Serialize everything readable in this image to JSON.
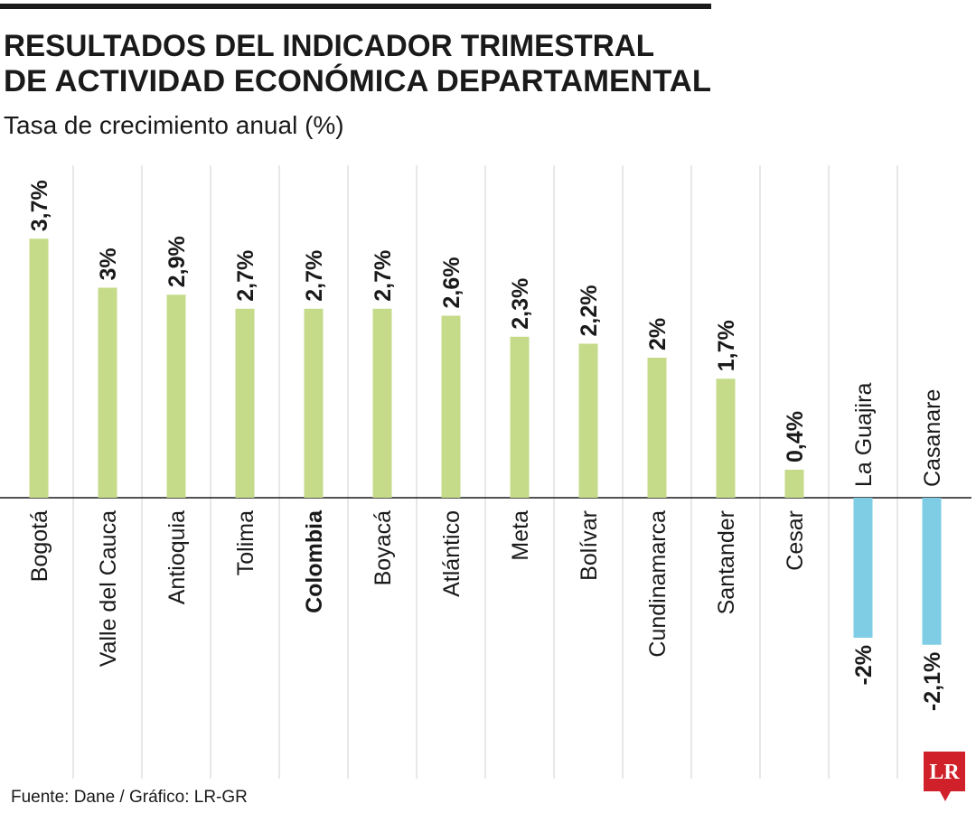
{
  "chart_data": {
    "type": "bar",
    "title": [
      "RESULTADOS DEL INDICADOR TRIMESTRAL",
      "DE ACTIVIDAD ECONÓMICA DEPARTAMENTAL"
    ],
    "subtitle": "Tasa de crecimiento anual (%)",
    "categories": [
      "Bogotá",
      "Valle del Cauca",
      "Antioquia",
      "Tolima",
      "Colombia",
      "Boyacá",
      "Atlántico",
      "Meta",
      "Bolívar",
      "Cundinamarca",
      "Santander",
      "Cesar",
      "La Guajira",
      "Casanare"
    ],
    "values": [
      3.7,
      3,
      2.9,
      2.7,
      2.7,
      2.7,
      2.6,
      2.3,
      2.2,
      2,
      1.7,
      0.4,
      -2,
      -2.1
    ],
    "value_labels": [
      "3,7%",
      "3%",
      "2,9%",
      "2,7%",
      "2,7%",
      "2,7%",
      "2,6%",
      "2,3%",
      "2,2%",
      "2%",
      "1,7%",
      "0,4%",
      "-2%",
      "-2,1%"
    ],
    "positive_color": "#c5db8a",
    "negative_color": "#7ecde5",
    "highlight": 4,
    "source": "Fuente: Dane / Gráfico: LR-GR",
    "logo": "LR"
  }
}
